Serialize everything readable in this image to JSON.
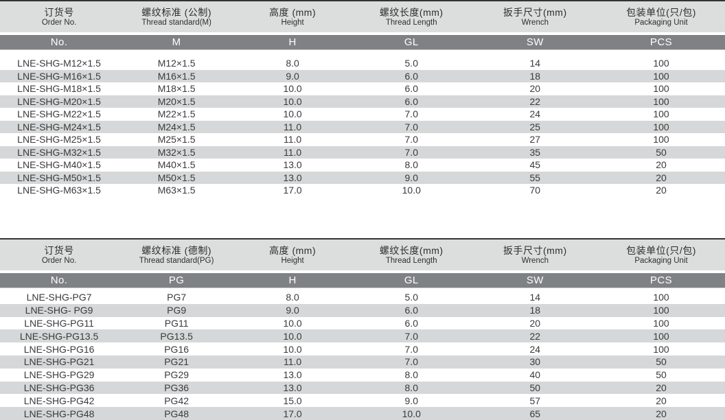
{
  "colors": {
    "header_bg": "#dcdede",
    "code_bg": "#7e8285",
    "stripe_bg": "#d5d7d8",
    "top_border": "#333333",
    "text": "#3a3a3a",
    "code_text": "#ffffff"
  },
  "tables": [
    {
      "name": "metric-thread-locknut-table",
      "columns": [
        {
          "cn": "订货号",
          "en": "Order No.",
          "code": "No."
        },
        {
          "cn": "螺纹标准 (公制)",
          "en": "Thread standard(M)",
          "code": "M"
        },
        {
          "cn": "高度 (mm)",
          "en": "Height",
          "code": "H"
        },
        {
          "cn": "螺纹长度(mm)",
          "en": "Thread Length",
          "code": "GL"
        },
        {
          "cn": "扳手尺寸(mm)",
          "en": "Wrench",
          "code": "SW"
        },
        {
          "cn": "包装单位(只/包)",
          "en": "Packaging Unit",
          "code": "PCS"
        }
      ],
      "rows": [
        [
          "LNE-SHG-M12×1.5",
          "M12×1.5",
          "8.0",
          "5.0",
          "14",
          "100"
        ],
        [
          "LNE-SHG-M16×1.5",
          "M16×1.5",
          "9.0",
          "6.0",
          "18",
          "100"
        ],
        [
          "LNE-SHG-M18×1.5",
          "M18×1.5",
          "10.0",
          "6.0",
          "20",
          "100"
        ],
        [
          "LNE-SHG-M20×1.5",
          "M20×1.5",
          "10.0",
          "6.0",
          "22",
          "100"
        ],
        [
          "LNE-SHG-M22×1.5",
          "M22×1.5",
          "10.0",
          "7.0",
          "24",
          "100"
        ],
        [
          "LNE-SHG-M24×1.5",
          "M24×1.5",
          "11.0",
          "7.0",
          "25",
          "100"
        ],
        [
          "LNE-SHG-M25×1.5",
          "M25×1.5",
          "11.0",
          "7.0",
          "27",
          "100"
        ],
        [
          "LNE-SHG-M32×1.5",
          "M32×1.5",
          "11.0",
          "7.0",
          "35",
          "50"
        ],
        [
          "LNE-SHG-M40×1.5",
          "M40×1.5",
          "13.0",
          "8.0",
          "45",
          "20"
        ],
        [
          "LNE-SHG-M50×1.5",
          "M50×1.5",
          "13.0",
          "9.0",
          "55",
          "20"
        ],
        [
          "LNE-SHG-M63×1.5",
          "M63×1.5",
          "17.0",
          "10.0",
          "70",
          "20"
        ]
      ]
    },
    {
      "name": "pg-thread-locknut-table",
      "columns": [
        {
          "cn": "订货号",
          "en": "Order No.",
          "code": "No."
        },
        {
          "cn": "螺纹标准 (德制)",
          "en": "Thread standard(PG)",
          "code": "PG"
        },
        {
          "cn": "高度 (mm)",
          "en": "Height",
          "code": "H"
        },
        {
          "cn": "螺纹长度(mm)",
          "en": "Thread Length",
          "code": "GL"
        },
        {
          "cn": "扳手尺寸(mm)",
          "en": "Wrench",
          "code": "SW"
        },
        {
          "cn": "包装单位(只/包)",
          "en": "Packaging Unit",
          "code": "PCS"
        }
      ],
      "rows": [
        [
          "LNE-SHG-PG7",
          "PG7",
          "8.0",
          "5.0",
          "14",
          "100"
        ],
        [
          "LNE-SHG- PG9",
          "PG9",
          "9.0",
          "6.0",
          "18",
          "100"
        ],
        [
          "LNE-SHG-PG11",
          "PG11",
          "10.0",
          "6.0",
          "20",
          "100"
        ],
        [
          "LNE-SHG-PG13.5",
          "PG13.5",
          "10.0",
          "7.0",
          "22",
          "100"
        ],
        [
          "LNE-SHG-PG16",
          "PG16",
          "10.0",
          "7.0",
          "24",
          "100"
        ],
        [
          "LNE-SHG-PG21",
          "PG21",
          "11.0",
          "7.0",
          "30",
          "50"
        ],
        [
          "LNE-SHG-PG29",
          "PG29",
          "13.0",
          "8.0",
          "40",
          "50"
        ],
        [
          "LNE-SHG-PG36",
          "PG36",
          "13.0",
          "8.0",
          "50",
          "20"
        ],
        [
          "LNE-SHG-PG42",
          "PG42",
          "15.0",
          "9.0",
          "57",
          "20"
        ],
        [
          "LNE-SHG-PG48",
          "PG48",
          "17.0",
          "10.0",
          "65",
          "20"
        ]
      ]
    }
  ]
}
